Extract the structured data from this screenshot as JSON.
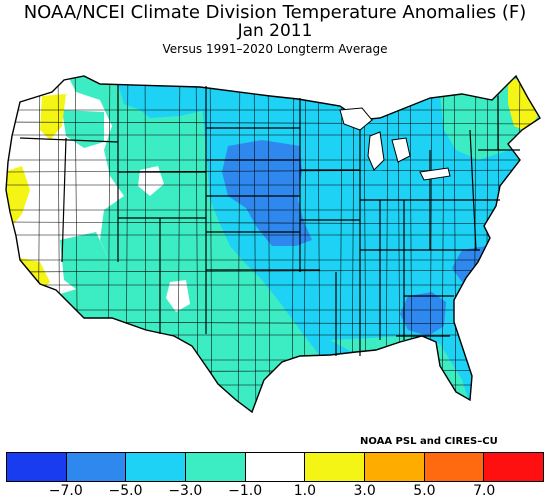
{
  "title": "NOAA/NCEI Climate Division Temperature Anomalies (F)",
  "period": "Jan 2011",
  "subtitle": "Versus 1991–2020 Longterm Average",
  "credit": "NOAA PSL and CIRES–CU",
  "legend": {
    "colors": [
      "#1a3cf0",
      "#2e88ee",
      "#1ed2f6",
      "#3cecc2",
      "#ffffff",
      "#f4f415",
      "#ffac00",
      "#ff6a10",
      "#ff1010"
    ],
    "labels": [
      "−7.0",
      "−5.0",
      "−3.0",
      "−1.0",
      "1.0",
      "3.0",
      "5.0",
      "7.0"
    ]
  },
  "map_colors": {
    "cool_very": "#2e88ee",
    "cool_mod": "#1ed2f6",
    "cool_slight": "#3cecc2",
    "neutral": "#ffffff",
    "warm_slight": "#f4f415",
    "border": "#000000"
  }
}
